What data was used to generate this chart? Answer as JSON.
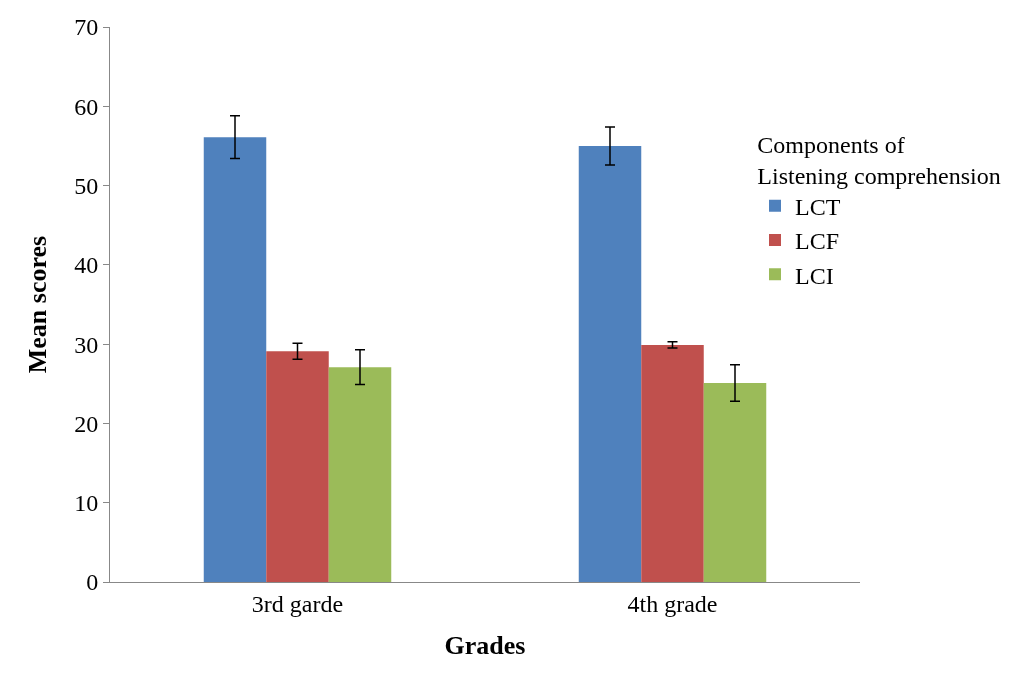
{
  "chart_data": {
    "type": "bar",
    "xlabel": "Grades",
    "ylabel": "Mean scores",
    "legend_title": "Components of\nListening comprehension",
    "categories": [
      "3rd garde",
      "4th grade"
    ],
    "series": [
      {
        "name": "LCT",
        "color": "#4f81bd",
        "values": [
          56.1,
          55.0
        ],
        "errors": [
          2.7,
          2.4
        ]
      },
      {
        "name": "LCF",
        "color": "#c0504d",
        "values": [
          29.1,
          29.9
        ],
        "errors": [
          1.0,
          0.4
        ]
      },
      {
        "name": "LCI",
        "color": "#9bbb59",
        "values": [
          27.1,
          25.1
        ],
        "errors": [
          2.2,
          2.3
        ]
      }
    ],
    "ylim": [
      0,
      70
    ],
    "yticks": [
      0,
      10,
      20,
      30,
      40,
      50,
      60,
      70
    ],
    "grid": false,
    "legend": "right"
  }
}
